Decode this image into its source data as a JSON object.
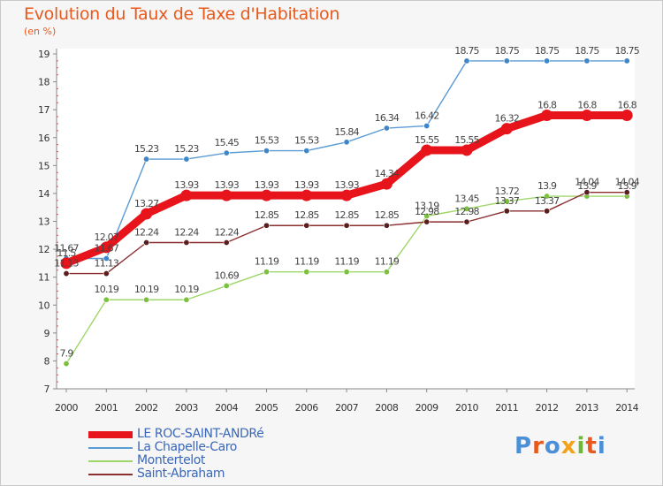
{
  "header": {
    "title": "Evolution du Taux de Taxe d'Habitation",
    "subtitle": "(en %)"
  },
  "logo": {
    "text": "Proxiti",
    "letter_colors": [
      "#4a8fd8",
      "#e8591b",
      "#4a8fd8",
      "#f2a31b",
      "#6fb73b",
      "#e8591b",
      "#4a8fd8"
    ]
  },
  "chart_data": {
    "type": "line",
    "title": "Evolution du Taux de Taxe d'Habitation",
    "subtitle": "(en %)",
    "xlabel": "",
    "ylabel": "",
    "x": [
      "2000",
      "2001",
      "2002",
      "2003",
      "2004",
      "2005",
      "2006",
      "2007",
      "2008",
      "2009",
      "2010",
      "2011",
      "2012",
      "2013",
      "2014"
    ],
    "ylim": [
      7,
      19
    ],
    "yticks": [
      "7",
      "8",
      "9",
      "10",
      "11",
      "12",
      "13",
      "14",
      "15",
      "16",
      "17",
      "18",
      "19"
    ],
    "grid": false,
    "legend_position": "bottom-left",
    "series": [
      {
        "name": "La Chapelle-Caro",
        "color": "#5b9bd5",
        "marker": "#3f86c8",
        "values": [
          11.67,
          11.67,
          15.23,
          15.23,
          15.45,
          15.53,
          15.53,
          15.84,
          16.34,
          16.42,
          18.75,
          18.75,
          18.75,
          18.75,
          18.75
        ],
        "labels": [
          "11.67",
          "11.67",
          "15.23",
          "15.23",
          "15.45",
          "15.53",
          "15.53",
          "15.84",
          "16.34",
          "16.42",
          "18.75",
          "18.75",
          "18.75",
          "18.75",
          "18.75"
        ]
      },
      {
        "name": "Montertelot",
        "color": "#9fd66a",
        "marker": "#7cc03f",
        "values": [
          7.9,
          10.19,
          10.19,
          10.19,
          10.69,
          11.19,
          11.19,
          11.19,
          11.19,
          13.19,
          13.45,
          13.72,
          13.9,
          13.9,
          13.9
        ],
        "labels": [
          "7.9",
          "10.19",
          "10.19",
          "10.19",
          "10.69",
          "11.19",
          "11.19",
          "11.19",
          "11.19",
          "13.19",
          "13.45",
          "13.72",
          "13.9",
          "13.9",
          "13.9"
        ]
      },
      {
        "name": "Saint-Abraham",
        "color": "#8b2e2e",
        "marker": "#5a1e1e",
        "values": [
          11.13,
          11.13,
          12.24,
          12.24,
          12.24,
          12.85,
          12.85,
          12.85,
          12.85,
          12.98,
          12.98,
          13.37,
          13.37,
          14.04,
          14.04
        ],
        "labels": [
          "11.13",
          "11.13",
          "12.24",
          "12.24",
          "12.24",
          "12.85",
          "12.85",
          "12.85",
          "12.85",
          "12.98",
          "12.98",
          "13.37",
          "13.37",
          "14.04",
          "14.04"
        ]
      },
      {
        "name": "LE ROC-SAINT-ANDRé",
        "color": "#e8141b",
        "marker": "#e8141b",
        "values": [
          11.5,
          12.07,
          13.27,
          13.93,
          13.93,
          13.93,
          13.93,
          13.93,
          14.34,
          15.55,
          15.55,
          16.32,
          16.8,
          16.8,
          16.8
        ],
        "labels": [
          "11.5",
          "12.07",
          "13.27",
          "13.93",
          "13.93",
          "13.93",
          "13.93",
          "13.93",
          "14.34",
          "15.55",
          "15.55",
          "16.32",
          "16.8",
          "16.8",
          "16.8"
        ]
      }
    ],
    "legend_order": [
      "LE ROC-SAINT-ANDRé",
      "La Chapelle-Caro",
      "Montertelot",
      "Saint-Abraham"
    ]
  }
}
